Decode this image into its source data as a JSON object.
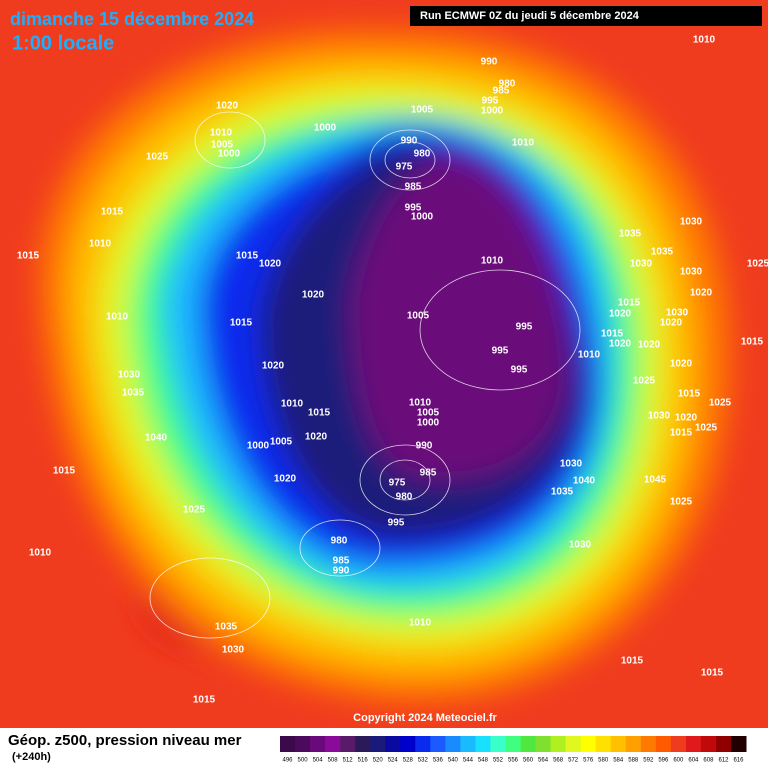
{
  "header": {
    "date": "dimanche 15 décembre 2024",
    "time": "1:00 locale",
    "run": "Run ECMWF 0Z du jeudi 5 décembre 2024"
  },
  "copyright": "Copyright 2024 Meteociel.fr",
  "legend": {
    "title": "Géop. z500, pression niveau mer",
    "lead": "(+240h)",
    "values": [
      496,
      500,
      504,
      508,
      512,
      516,
      520,
      524,
      528,
      532,
      536,
      540,
      544,
      548,
      552,
      556,
      560,
      564,
      568,
      572,
      576,
      580,
      584,
      588,
      592,
      596,
      600,
      604,
      608,
      612,
      616
    ],
    "colors": [
      "#3a0a4a",
      "#4b0a5e",
      "#6a0a7a",
      "#8a0a9a",
      "#5a1a6a",
      "#2a1a5a",
      "#1a1a7a",
      "#0a0aa0",
      "#0000cc",
      "#0a2aee",
      "#1a5aff",
      "#1a8aff",
      "#1abaff",
      "#1ae0ff",
      "#3affc8",
      "#40ff80",
      "#50e840",
      "#80e030",
      "#b0f020",
      "#e0f820",
      "#ffff00",
      "#ffe000",
      "#ffc000",
      "#ffa000",
      "#ff7a00",
      "#ff5a00",
      "#f03c1e",
      "#e01a1a",
      "#c00a0a",
      "#900000",
      "#200000"
    ]
  },
  "isobar_labels": [
    1010,
    990,
    980,
    985,
    995,
    1000,
    1005,
    1000,
    990,
    980,
    975,
    985,
    1010,
    995,
    1000,
    1020,
    1010,
    1005,
    1000,
    1025,
    1015,
    1010,
    1015,
    1015,
    1020,
    1020,
    1015,
    1010,
    1030,
    1035,
    1040,
    1015,
    1025,
    1010,
    1020,
    1010,
    1015,
    1005,
    1000,
    1020,
    1020,
    1010,
    1005,
    995,
    995,
    995,
    1010,
    1010,
    1005,
    1000,
    990,
    985,
    975,
    980,
    995,
    980,
    985,
    990,
    1035,
    1035,
    1030,
    1030,
    1030,
    1020,
    1015,
    1020,
    1030,
    1020,
    1015,
    1020,
    1020,
    1020,
    1015,
    1025,
    1015,
    1025,
    1030,
    1020,
    1015,
    1025,
    1030,
    1040,
    1035,
    1045,
    1025,
    1030,
    1010,
    1035,
    1030,
    1015,
    1015,
    1015,
    1025
  ]
}
